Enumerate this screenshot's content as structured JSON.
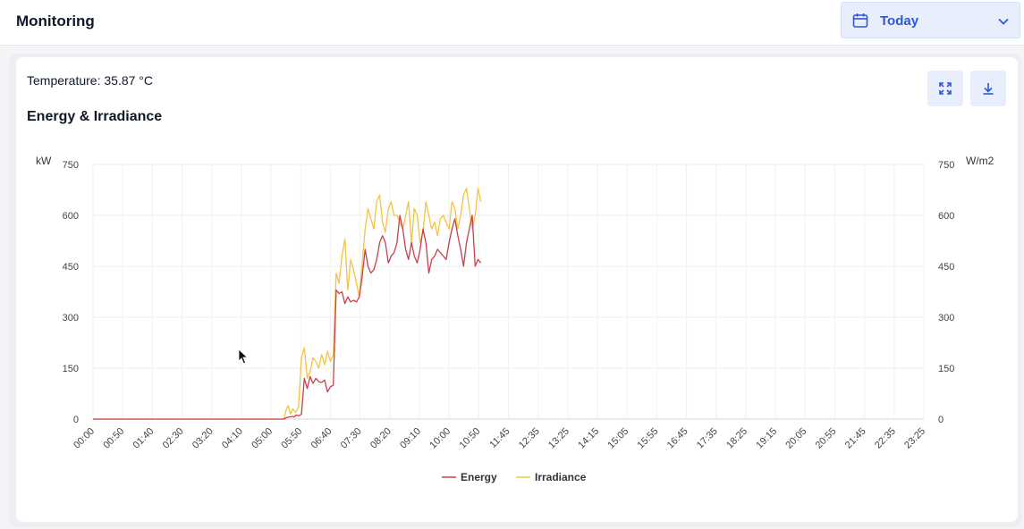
{
  "header": {
    "title": "Monitoring",
    "date_range": {
      "label": "Today",
      "icon": "calendar-icon"
    }
  },
  "card": {
    "temperature_label": "Temperature: 35.87 °C",
    "buttons": {
      "expand": "expand-icon",
      "download": "download-icon"
    }
  },
  "colors": {
    "energy": "#c9404b",
    "irradiance": "#f5c242",
    "accent": "#2f56d6"
  },
  "chart_data": {
    "type": "line",
    "title": "Energy & Irradiance",
    "ylabel": "kW",
    "ylabel_right": "W/m2",
    "ylim": [
      0,
      750
    ],
    "yticks": [
      0,
      150,
      300,
      450,
      600,
      750
    ],
    "x_start_minutes": 0,
    "x_end_minutes": 1435,
    "x_tick_labels": [
      "00:00",
      "00:50",
      "01:40",
      "02:30",
      "03:20",
      "04:10",
      "05:00",
      "05:50",
      "06:40",
      "07:30",
      "08:20",
      "09:10",
      "10:00",
      "10:50",
      "11:45",
      "12:35",
      "13:25",
      "14:15",
      "15:05",
      "15:55",
      "16:45",
      "17:35",
      "18:25",
      "19:15",
      "20:05",
      "20:55",
      "21:45",
      "22:35",
      "23:25"
    ],
    "legend": [
      "Energy",
      "Irradiance"
    ],
    "legend_position": "bottom",
    "series": [
      {
        "name": "Energy",
        "x": [
          0,
          330,
          335,
          345,
          348,
          350,
          355,
          360,
          365,
          370,
          375,
          380,
          385,
          390,
          395,
          400,
          405,
          410,
          415,
          420,
          425,
          430,
          435,
          440,
          445,
          450,
          455,
          460,
          465,
          470,
          475,
          480,
          485,
          490,
          495,
          500,
          505,
          510,
          515,
          520,
          525,
          530,
          535,
          540,
          545,
          550,
          555,
          560,
          565,
          570,
          575,
          580,
          585,
          590,
          595,
          600,
          605,
          610,
          615,
          620,
          625,
          630,
          635,
          640,
          645,
          650,
          655,
          660,
          665,
          670
        ],
        "values": [
          0,
          0,
          5,
          8,
          6,
          12,
          10,
          14,
          120,
          90,
          125,
          105,
          120,
          110,
          108,
          115,
          80,
          95,
          100,
          380,
          370,
          375,
          340,
          360,
          345,
          350,
          345,
          360,
          420,
          500,
          450,
          430,
          440,
          470,
          520,
          540,
          520,
          460,
          480,
          490,
          520,
          600,
          560,
          500,
          470,
          520,
          480,
          460,
          500,
          560,
          520,
          430,
          470,
          480,
          500,
          490,
          480,
          470,
          520,
          560,
          590,
          540,
          500,
          450,
          520,
          560,
          600,
          450,
          470,
          460
        ]
      },
      {
        "name": "Irradiance",
        "x": [
          0,
          330,
          333,
          337,
          341,
          345,
          350,
          355,
          360,
          365,
          370,
          375,
          380,
          385,
          390,
          395,
          400,
          405,
          410,
          415,
          420,
          425,
          430,
          435,
          440,
          445,
          450,
          455,
          460,
          465,
          470,
          475,
          480,
          485,
          490,
          495,
          500,
          505,
          510,
          515,
          520,
          525,
          530,
          535,
          540,
          545,
          550,
          555,
          560,
          565,
          570,
          575,
          580,
          585,
          590,
          595,
          600,
          605,
          610,
          615,
          620,
          625,
          630,
          635,
          640,
          645,
          650,
          655,
          660,
          665,
          670
        ],
        "values": [
          0,
          0,
          25,
          40,
          15,
          30,
          20,
          35,
          180,
          210,
          120,
          140,
          180,
          170,
          150,
          190,
          160,
          200,
          170,
          190,
          430,
          400,
          480,
          530,
          380,
          470,
          440,
          400,
          360,
          460,
          560,
          620,
          590,
          560,
          640,
          660,
          580,
          550,
          620,
          640,
          600,
          600,
          580,
          560,
          600,
          640,
          520,
          620,
          600,
          520,
          550,
          640,
          600,
          560,
          580,
          540,
          590,
          600,
          580,
          560,
          640,
          620,
          560,
          600,
          660,
          680,
          620,
          560,
          600,
          680,
          640
        ]
      }
    ]
  }
}
